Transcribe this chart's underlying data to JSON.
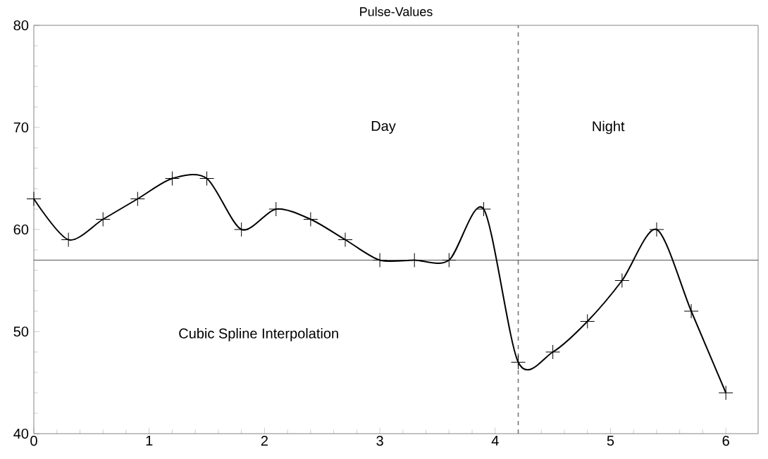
{
  "chart_data": {
    "type": "line",
    "title": "Pulse-Values",
    "x": [
      0,
      0.3,
      0.6,
      0.9,
      1.2,
      1.5,
      1.8,
      2.1,
      2.4,
      2.7,
      3.0,
      3.3,
      3.6,
      3.9,
      4.2,
      4.5,
      4.8,
      5.1,
      5.4,
      5.7,
      6.0
    ],
    "series": [
      {
        "color": "#000000",
        "values": [
          63,
          59,
          61,
          63,
          65,
          65,
          60,
          62,
          61,
          59,
          57,
          57,
          57,
          62,
          47,
          48,
          51,
          55,
          60,
          52,
          44
        ]
      }
    ],
    "xlim": [
      0,
      6.28
    ],
    "xticks": [
      0,
      1,
      2,
      3,
      4,
      5,
      6
    ],
    "ylim": [
      40,
      80
    ],
    "yticks": [
      40,
      50,
      60,
      70,
      80
    ],
    "marker": "cross",
    "line_style": "solid",
    "ref_lines": [
      {
        "axis": "y",
        "value": 57,
        "color": "#555555",
        "line_style": "solid"
      },
      {
        "axis": "x",
        "value": 4.2,
        "color": "#777777",
        "line_style": "dashed"
      }
    ],
    "annotations": [
      "Day",
      "Night",
      "Cubic Spline Interpolation"
    ]
  }
}
